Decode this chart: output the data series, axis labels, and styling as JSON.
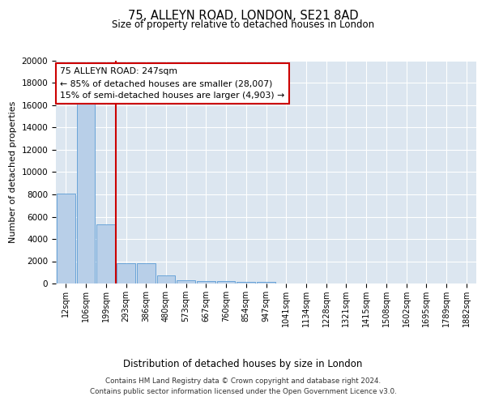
{
  "title_line1": "75, ALLEYN ROAD, LONDON, SE21 8AD",
  "title_line2": "Size of property relative to detached houses in London",
  "xlabel": "Distribution of detached houses by size in London",
  "ylabel": "Number of detached properties",
  "bin_labels": [
    "12sqm",
    "106sqm",
    "199sqm",
    "293sqm",
    "386sqm",
    "480sqm",
    "573sqm",
    "667sqm",
    "760sqm",
    "854sqm",
    "947sqm",
    "1041sqm",
    "1134sqm",
    "1228sqm",
    "1321sqm",
    "1415sqm",
    "1508sqm",
    "1602sqm",
    "1695sqm",
    "1789sqm",
    "1882sqm"
  ],
  "bar_values": [
    8100,
    16500,
    5300,
    1850,
    1850,
    700,
    300,
    230,
    200,
    170,
    160,
    0,
    0,
    0,
    0,
    0,
    0,
    0,
    0,
    0,
    0
  ],
  "bar_color": "#b8cfe8",
  "bar_edge_color": "#5b9bd5",
  "background_color": "#dce6f0",
  "vline_x": 2.5,
  "vline_color": "#cc0000",
  "annotation_text": "75 ALLEYN ROAD: 247sqm\n← 85% of detached houses are smaller (28,007)\n15% of semi-detached houses are larger (4,903) →",
  "annotation_box_color": "white",
  "annotation_box_edge": "#cc0000",
  "footnote": "Contains HM Land Registry data © Crown copyright and database right 2024.\nContains public sector information licensed under the Open Government Licence v3.0.",
  "ylim": [
    0,
    20000
  ],
  "yticks": [
    0,
    2000,
    4000,
    6000,
    8000,
    10000,
    12000,
    14000,
    16000,
    18000,
    20000
  ]
}
